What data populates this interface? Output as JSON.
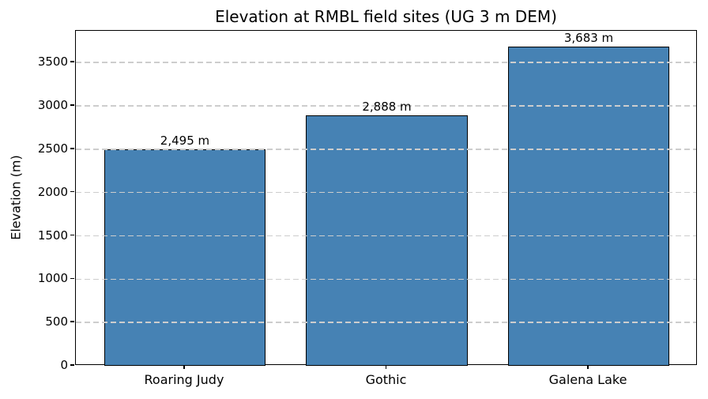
{
  "chart_data": {
    "type": "bar",
    "title": "Elevation at RMBL field sites (UG 3 m DEM)",
    "xlabel": "",
    "ylabel": "Elevation (m)",
    "categories": [
      "Roaring Judy",
      "Gothic",
      "Galena Lake"
    ],
    "values": [
      2495,
      2888,
      3683
    ],
    "value_labels": [
      "2,495 m",
      "2,888 m",
      "3,683 m"
    ],
    "yticks": [
      0,
      500,
      1000,
      1500,
      2000,
      2500,
      3000,
      3500
    ],
    "ytick_labels": [
      "0",
      "500",
      "1000",
      "1500",
      "2000",
      "2500",
      "3000",
      "3500"
    ],
    "ylim": [
      0,
      3867
    ],
    "grid": "horizontal, dashed, drawn over bars",
    "legend": "none",
    "colors": {
      "bar_fill": "#4682B4",
      "bar_edge": "#000000",
      "grid_line": "#cdcdcd",
      "axis_frame": "#000000",
      "text": "#000000",
      "background": "#ffffff"
    }
  }
}
